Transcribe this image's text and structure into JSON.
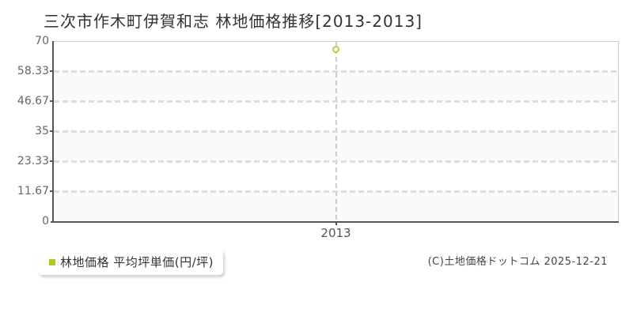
{
  "title": "三次市作木町伊賀和志 林地価格推移[2013-2013]",
  "chart_data": {
    "type": "scatter",
    "title": "三次市作木町伊賀和志 林地価格推移[2013-2013]",
    "categories": [
      "2013"
    ],
    "series": [
      {
        "name": "林地価格 平均坪単価(円/坪)",
        "values": [
          66.67
        ],
        "marker": "hollow-circle",
        "color": "#b2d435"
      }
    ],
    "xlabel": "",
    "ylabel": "",
    "ylim": [
      0,
      70
    ],
    "ytick_labels": [
      "70",
      "58.33",
      "46.67",
      "35",
      "23.33",
      "11.67",
      "0"
    ],
    "grid": "dashed",
    "band_fill": "alternating",
    "legend_position": "bottom-left"
  },
  "legend": {
    "label": "林地価格 平均坪単価(円/坪)",
    "marker_color": "#aacc22"
  },
  "footer": {
    "copyright": "(C)土地価格ドットコム 2025-12-21"
  },
  "colors": {
    "background": "#ffffff",
    "band": "#fafafa",
    "axis": "#555555",
    "grid": "#dddddd",
    "title_text": "#333333",
    "tick_text": "#666666",
    "point": "#b2d435"
  }
}
